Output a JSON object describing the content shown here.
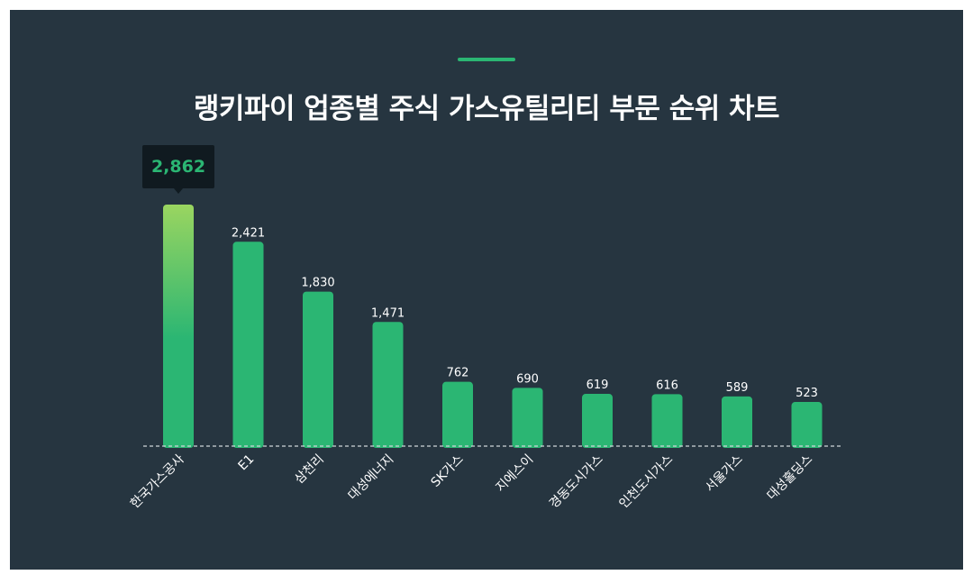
{
  "title": "랭키파이 업종별 주식 가스유틸리티 부문 순위 차트",
  "colors": {
    "background": "#263540",
    "accent": "#2bb673",
    "bar": "#2bb673",
    "highlight_bar_top": "#9ad560",
    "tooltip_bg": "#101a20",
    "tooltip_text": "#2bb673",
    "text": "#ffffff",
    "baseline": "#cfd6da"
  },
  "chart_data": {
    "type": "bar",
    "title": "랭키파이 업종별 주식 가스유틸리티 부문 순위 차트",
    "xlabel": "",
    "ylabel": "",
    "categories": [
      "한국가스공사",
      "E1",
      "삼천리",
      "대성에너지",
      "SK가스",
      "지에스이",
      "경동도시가스",
      "인천도시가스",
      "서울가스",
      "대성홀딩스"
    ],
    "values": [
      2862,
      2421,
      1830,
      1471,
      762,
      690,
      619,
      616,
      589,
      523
    ],
    "value_labels": [
      "2,862",
      "2,421",
      "1,830",
      "1,471",
      "762",
      "690",
      "619",
      "616",
      "589",
      "523"
    ],
    "highlight_index": 0,
    "ylim": [
      0,
      2862
    ],
    "grid": false,
    "legend": "none"
  }
}
